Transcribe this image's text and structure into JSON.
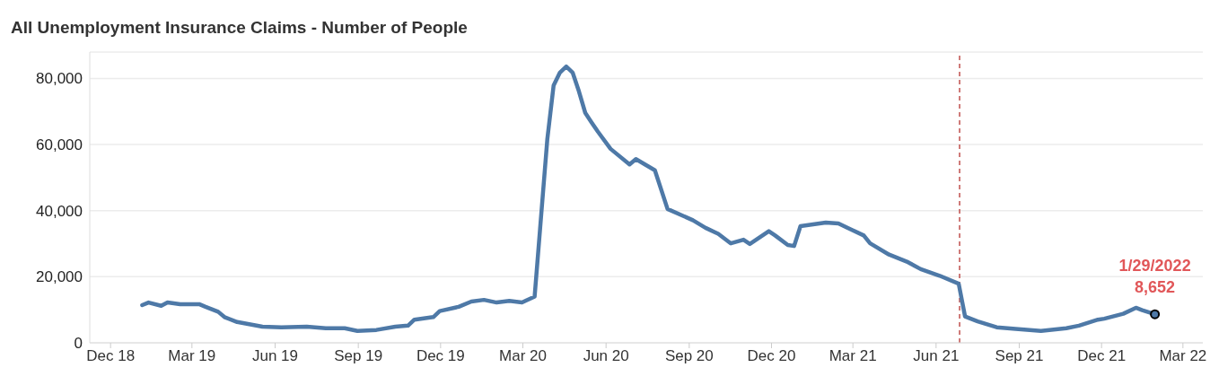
{
  "chart_data": {
    "type": "line",
    "title": "All Unemployment Insurance Claims - Number of People",
    "xlim": [
      "2018-11-08",
      "2022-03-23"
    ],
    "xticks": [
      {
        "value": "2018-12-01",
        "label": "Dec 18"
      },
      {
        "value": "2019-03-01",
        "label": "Mar 19"
      },
      {
        "value": "2019-06-01",
        "label": "Jun 19"
      },
      {
        "value": "2019-09-01",
        "label": "Sep 19"
      },
      {
        "value": "2019-12-01",
        "label": "Dec 19"
      },
      {
        "value": "2020-03-01",
        "label": "Mar 20"
      },
      {
        "value": "2020-06-01",
        "label": "Jun 20"
      },
      {
        "value": "2020-09-01",
        "label": "Sep 20"
      },
      {
        "value": "2020-12-01",
        "label": "Dec 20"
      },
      {
        "value": "2021-03-01",
        "label": "Mar 21"
      },
      {
        "value": "2021-06-01",
        "label": "Jun 21"
      },
      {
        "value": "2021-09-01",
        "label": "Sep 21"
      },
      {
        "value": "2021-12-01",
        "label": "Dec 21"
      },
      {
        "value": "2022-03-01",
        "label": "Mar 22"
      }
    ],
    "ylim": [
      0,
      88000
    ],
    "yticks": [
      0,
      {
        "value": 20000,
        "label": "20,000"
      },
      {
        "value": 40000,
        "label": "40,000"
      },
      {
        "value": 60000,
        "label": "60,000"
      },
      {
        "value": 80000,
        "label": "80,000"
      }
    ],
    "grid": "y",
    "line_style": "solid",
    "series": [
      {
        "marker": "none",
        "color": "#4e79a7",
        "x": [
          "2019-01-05",
          "2019-01-12",
          "2019-01-26",
          "2019-02-02",
          "2019-02-16",
          "2019-03-09",
          "2019-03-16",
          "2019-03-30",
          "2019-04-06",
          "2019-04-20",
          "2019-05-18",
          "2019-06-08",
          "2019-07-06",
          "2019-07-27",
          "2019-08-17",
          "2019-08-31",
          "2019-09-21",
          "2019-10-12",
          "2019-10-26",
          "2019-11-02",
          "2019-11-23",
          "2019-11-30",
          "2019-12-21",
          "2020-01-04",
          "2020-01-18",
          "2020-02-01",
          "2020-02-15",
          "2020-02-29",
          "2020-03-14",
          "2020-03-28",
          "2020-04-04",
          "2020-04-11",
          "2020-04-18",
          "2020-04-25",
          "2020-05-02",
          "2020-05-09",
          "2020-05-16",
          "2020-05-23",
          "2020-06-06",
          "2020-06-27",
          "2020-07-04",
          "2020-07-25",
          "2020-08-08",
          "2020-09-05",
          "2020-09-19",
          "2020-10-03",
          "2020-10-17",
          "2020-10-31",
          "2020-11-07",
          "2020-11-28",
          "2020-12-05",
          "2020-12-19",
          "2020-12-26",
          "2021-01-02",
          "2021-01-30",
          "2021-02-13",
          "2021-02-27",
          "2021-03-13",
          "2021-03-20",
          "2021-04-10",
          "2021-05-01",
          "2021-05-15",
          "2021-06-05",
          "2021-06-26",
          "2021-07-03",
          "2021-07-17",
          "2021-08-07",
          "2021-08-28",
          "2021-09-25",
          "2021-10-23",
          "2021-11-06",
          "2021-11-27",
          "2021-12-04",
          "2021-12-25",
          "2022-01-08",
          "2022-01-15",
          "2022-01-29"
        ],
        "values": [
          11400,
          12200,
          11200,
          12200,
          11700,
          11700,
          10900,
          9400,
          7800,
          6300,
          4900,
          4700,
          4900,
          4400,
          4400,
          3600,
          3900,
          4900,
          5200,
          7000,
          7800,
          9600,
          10900,
          12500,
          13000,
          12200,
          12700,
          12200,
          14000,
          61500,
          77900,
          81800,
          83600,
          81800,
          76100,
          69600,
          66700,
          63900,
          58700,
          54000,
          55600,
          52200,
          40500,
          37100,
          34800,
          33000,
          30100,
          31200,
          29900,
          33800,
          32500,
          29600,
          29300,
          35300,
          36400,
          36100,
          34300,
          32500,
          30100,
          26700,
          24400,
          22300,
          20300,
          17900,
          8000,
          6500,
          4700,
          4200,
          3600,
          4400,
          5200,
          7000,
          7300,
          8800,
          10600,
          9900,
          8652
        ]
      },
      {
        "type": "scatter",
        "marker": "circle",
        "color": "#4e79a7",
        "x": [
          "2022-01-29"
        ],
        "values": [
          8652
        ]
      }
    ],
    "ref_lines": [
      {
        "axis": "x",
        "value": "2021-06-27",
        "color": "#c0504d",
        "line_style": "dashed"
      }
    ],
    "annotations": [
      {
        "text": "1/29/2022\n8,652",
        "x": "2022-01-29",
        "y": 8652
      }
    ]
  }
}
